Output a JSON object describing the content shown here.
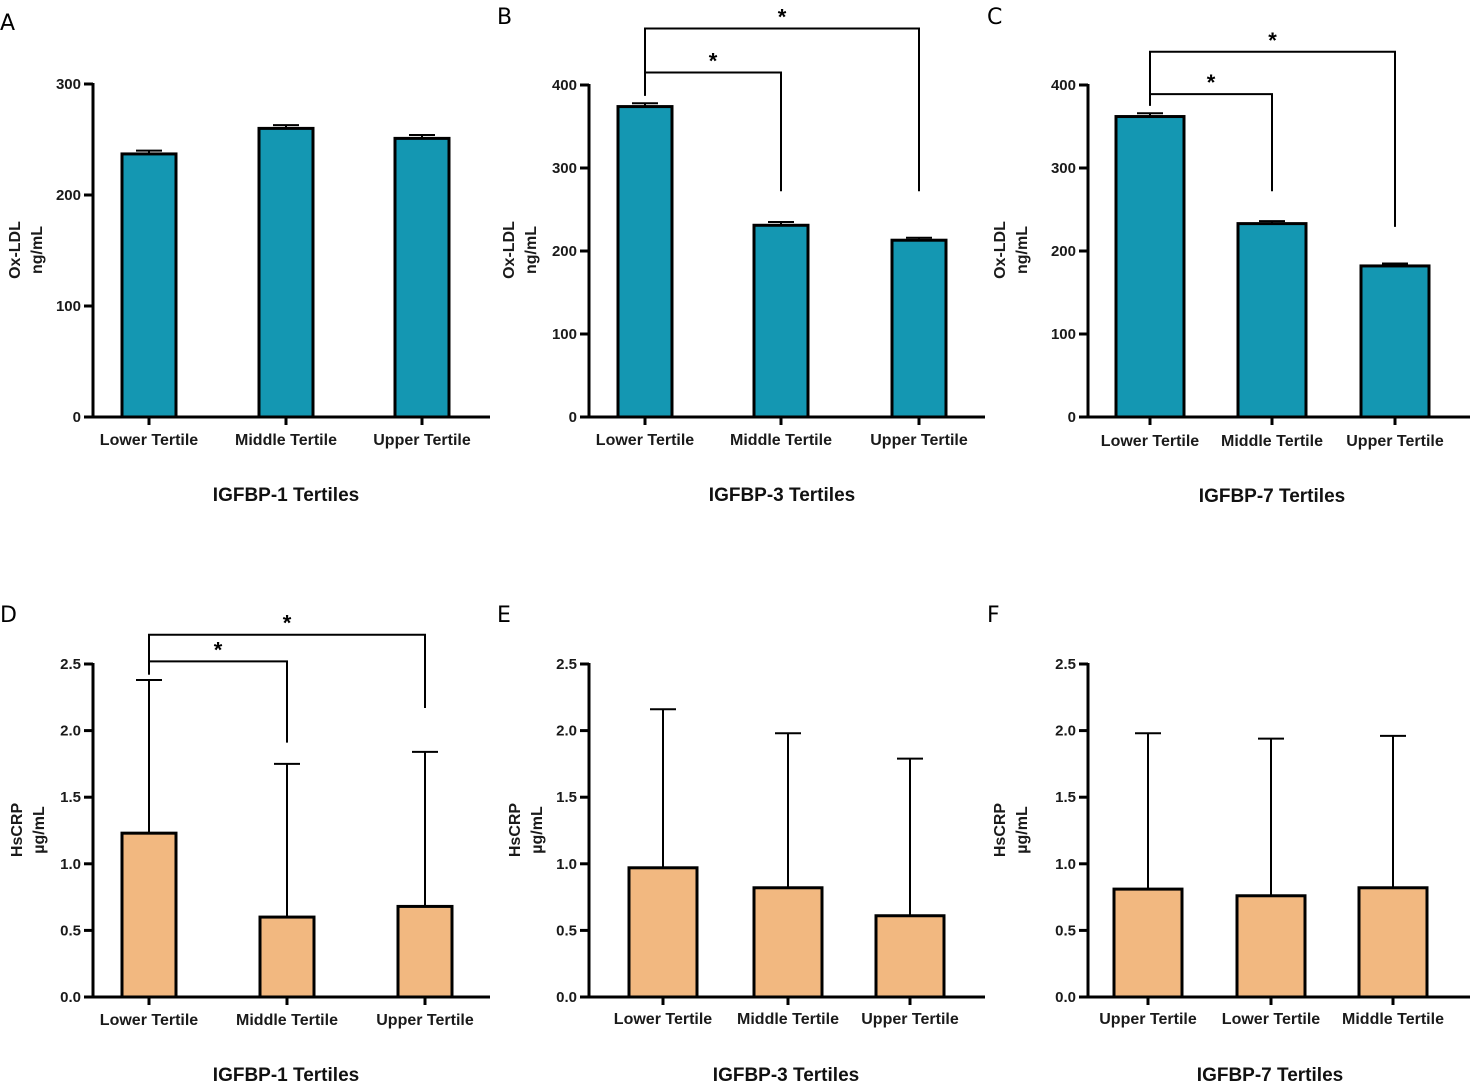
{
  "figure": {
    "colors": {
      "teal": "#1497b2",
      "peach": "#f2b880",
      "axis": "#000000"
    }
  },
  "chart_data": [
    {
      "panel": "A",
      "type": "bar",
      "categories": [
        "Lower Tertile",
        "Middle Tertile",
        "Upper Tertile"
      ],
      "values": [
        237,
        260,
        251
      ],
      "error": [
        3,
        3,
        3
      ],
      "xlabel": "IGFBP-1 Tertiles",
      "ylabel": [
        "Ox-LDL",
        "ng/mL"
      ],
      "ylim": [
        0,
        300
      ],
      "yticks": [
        0,
        100,
        200,
        300
      ],
      "tick_labels": [
        "0",
        "100",
        "200",
        "300"
      ],
      "color": "#1497b2",
      "significance": []
    },
    {
      "panel": "B",
      "type": "bar",
      "categories": [
        "Lower Tertile",
        "Middle Tertile",
        "Upper Tertile"
      ],
      "values": [
        374,
        231,
        213
      ],
      "error": [
        4,
        4,
        3
      ],
      "xlabel": "IGFBP-3 Tertiles",
      "ylabel": [
        "Ox-LDL",
        "ng/mL"
      ],
      "ylim": [
        0,
        400
      ],
      "yticks": [
        0,
        100,
        200,
        300,
        400
      ],
      "tick_labels": [
        "0",
        "100",
        "200",
        "300",
        "400"
      ],
      "color": "#1497b2",
      "significance": [
        {
          "from": 0,
          "to": 1,
          "label": "*",
          "level": 0,
          "y": 415,
          "y_start": 387,
          "y_end": 272
        },
        {
          "from": 0,
          "to": 2,
          "label": "*",
          "level": 1,
          "y": 468,
          "y_start": 387,
          "y_end": 272
        }
      ]
    },
    {
      "panel": "C",
      "type": "bar",
      "categories": [
        "Lower Tertile",
        "Middle Tertile",
        "Upper Tertile"
      ],
      "values": [
        362,
        233,
        182
      ],
      "error": [
        4,
        3,
        3
      ],
      "xlabel": "IGFBP-7 Tertiles",
      "ylabel": [
        "Ox-LDL",
        "ng/mL"
      ],
      "ylim": [
        0,
        400
      ],
      "yticks": [
        0,
        100,
        200,
        300,
        400
      ],
      "tick_labels": [
        "0",
        "100",
        "200",
        "300",
        "400"
      ],
      "color": "#1497b2",
      "significance": [
        {
          "from": 0,
          "to": 1,
          "label": "*",
          "level": 0,
          "y": 389,
          "y_start": 375,
          "y_end": 272
        },
        {
          "from": 0,
          "to": 2,
          "label": "*",
          "level": 1,
          "y": 440,
          "y_start": 375,
          "y_end": 229
        }
      ]
    },
    {
      "panel": "D",
      "type": "bar",
      "categories": [
        "Lower Tertile",
        "Middle Tertile",
        "Upper Tertile"
      ],
      "values": [
        1.23,
        0.6,
        0.68
      ],
      "error": [
        1.15,
        1.15,
        1.16
      ],
      "xlabel": "IGFBP-1 Tertiles",
      "ylabel": [
        "HsCRP",
        "µg/mL"
      ],
      "ylim": [
        0,
        2.5
      ],
      "yticks": [
        0,
        0.5,
        1.0,
        1.5,
        2.0,
        2.5
      ],
      "tick_labels": [
        "0.0",
        "0.5",
        "1.0",
        "1.5",
        "2.0",
        "2.5"
      ],
      "color": "#f2b880",
      "significance": [
        {
          "from": 0,
          "to": 1,
          "label": "*",
          "level": 0,
          "y": 2.52,
          "y_start": 2.42,
          "y_end": 1.91
        },
        {
          "from": 0,
          "to": 2,
          "label": "*",
          "level": 1,
          "y": 2.72,
          "y_start": 2.42,
          "y_end": 2.17
        }
      ]
    },
    {
      "panel": "E",
      "type": "bar",
      "categories": [
        "Lower Tertile",
        "Middle Tertile",
        "Upper Tertile"
      ],
      "values": [
        0.97,
        0.82,
        0.61
      ],
      "error": [
        1.19,
        1.16,
        1.18
      ],
      "xlabel": "IGFBP-3 Tertiles",
      "ylabel": [
        "HsCRP",
        "µg/mL"
      ],
      "ylim": [
        0,
        2.5
      ],
      "yticks": [
        0,
        0.5,
        1.0,
        1.5,
        2.0,
        2.5
      ],
      "tick_labels": [
        "0.0",
        "0.5",
        "1.0",
        "1.5",
        "2.0",
        "2.5"
      ],
      "color": "#f2b880",
      "significance": []
    },
    {
      "panel": "F",
      "type": "bar",
      "categories": [
        "Upper Tertile",
        "Lower Tertile",
        "Middle Tertile"
      ],
      "values": [
        0.81,
        0.76,
        0.82
      ],
      "error": [
        1.17,
        1.18,
        1.14
      ],
      "xlabel": "IGFBP-7 Tertiles",
      "ylabel": [
        "HsCRP",
        "µg/mL"
      ],
      "ylim": [
        0,
        2.5
      ],
      "yticks": [
        0,
        0.5,
        1.0,
        1.5,
        2.0,
        2.5
      ],
      "tick_labels": [
        "0.0",
        "0.5",
        "1.0",
        "1.5",
        "2.0",
        "2.5"
      ],
      "color": "#f2b880",
      "significance": []
    }
  ]
}
